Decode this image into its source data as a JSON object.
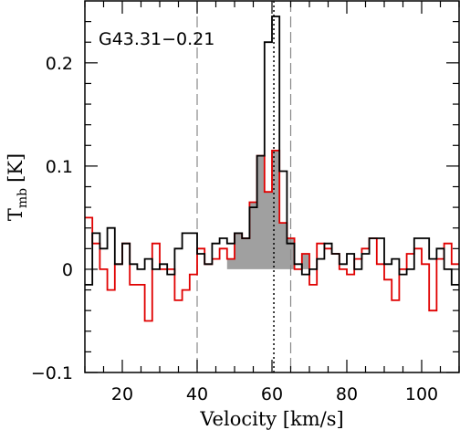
{
  "chart_data": {
    "type": "line",
    "title": "G43.31−0.21",
    "xlabel": "Velocity [km/s]",
    "ylabel_main": "T",
    "ylabel_sub": "mb",
    "ylabel_unit": "[K]",
    "xlim": [
      10,
      110
    ],
    "ylim": [
      -0.1,
      0.26
    ],
    "x_ticks": [
      20,
      40,
      60,
      80,
      100
    ],
    "y_ticks": [
      -0.1,
      0,
      0.1,
      0.2
    ],
    "y_tick_labels": [
      "−0.1",
      "0",
      "0.1",
      "0.2"
    ],
    "step": "center",
    "vlines": [
      {
        "x": 40,
        "style": "dashed",
        "color": "#888888"
      },
      {
        "x": 60.5,
        "style": "dotted",
        "color": "#000000"
      },
      {
        "x": 65,
        "style": "dashed",
        "color": "#888888"
      }
    ],
    "series": [
      {
        "color": "#000000",
        "x": [
          11,
          13,
          15,
          17,
          19,
          21,
          23,
          25,
          27,
          29,
          31,
          33,
          35,
          37,
          39,
          41,
          43,
          45,
          47,
          49,
          51,
          53,
          55,
          57,
          59,
          61,
          63,
          65,
          67,
          69,
          71,
          73,
          75,
          77,
          79,
          81,
          83,
          85,
          87,
          89,
          91,
          93,
          95,
          97,
          99,
          101,
          103,
          105,
          107,
          109
        ],
        "y": [
          -0.015,
          0.035,
          0.02,
          0.04,
          0.005,
          0.025,
          0.005,
          0.0,
          0.01,
          0.0,
          0.005,
          -0.005,
          0.02,
          0.035,
          0.035,
          0.015,
          0.005,
          0.025,
          0.03,
          0.025,
          0.035,
          0.03,
          0.06,
          0.11,
          0.22,
          0.245,
          0.095,
          0.025,
          0.005,
          -0.005,
          0.0,
          0.01,
          0.025,
          0.015,
          0.005,
          0.015,
          0.0,
          0.015,
          0.03,
          0.03,
          0.005,
          0.01,
          -0.005,
          0.0,
          0.03,
          0.03,
          0.01,
          0.02,
          0.0,
          -0.015
        ]
      },
      {
        "color": "#e00000",
        "fill_between": [
          49,
          71
        ],
        "fill_color": "#a0a0a0",
        "x": [
          11,
          13,
          15,
          17,
          19,
          21,
          23,
          25,
          27,
          29,
          31,
          33,
          35,
          37,
          39,
          41,
          43,
          45,
          47,
          49,
          51,
          53,
          55,
          57,
          59,
          61,
          63,
          65,
          67,
          69,
          71,
          73,
          75,
          77,
          79,
          81,
          83,
          85,
          87,
          89,
          91,
          93,
          95,
          97,
          99,
          101,
          103,
          105,
          107,
          109
        ],
        "y": [
          0.05,
          0.025,
          0.0,
          -0.02,
          0.005,
          0.025,
          -0.015,
          -0.015,
          -0.05,
          0.025,
          0.0,
          0.0,
          -0.03,
          -0.02,
          -0.005,
          0.02,
          0.005,
          0.01,
          0.02,
          0.01,
          0.035,
          0.03,
          0.065,
          0.11,
          0.075,
          0.115,
          0.045,
          0.03,
          0.0,
          0.015,
          -0.015,
          0.025,
          0.02,
          0.015,
          0.0,
          -0.005,
          0.01,
          0.02,
          0.03,
          0.005,
          -0.01,
          -0.03,
          0.0,
          0.015,
          0.02,
          0.005,
          -0.04,
          0.01,
          0.025,
          0.005
        ]
      }
    ]
  }
}
